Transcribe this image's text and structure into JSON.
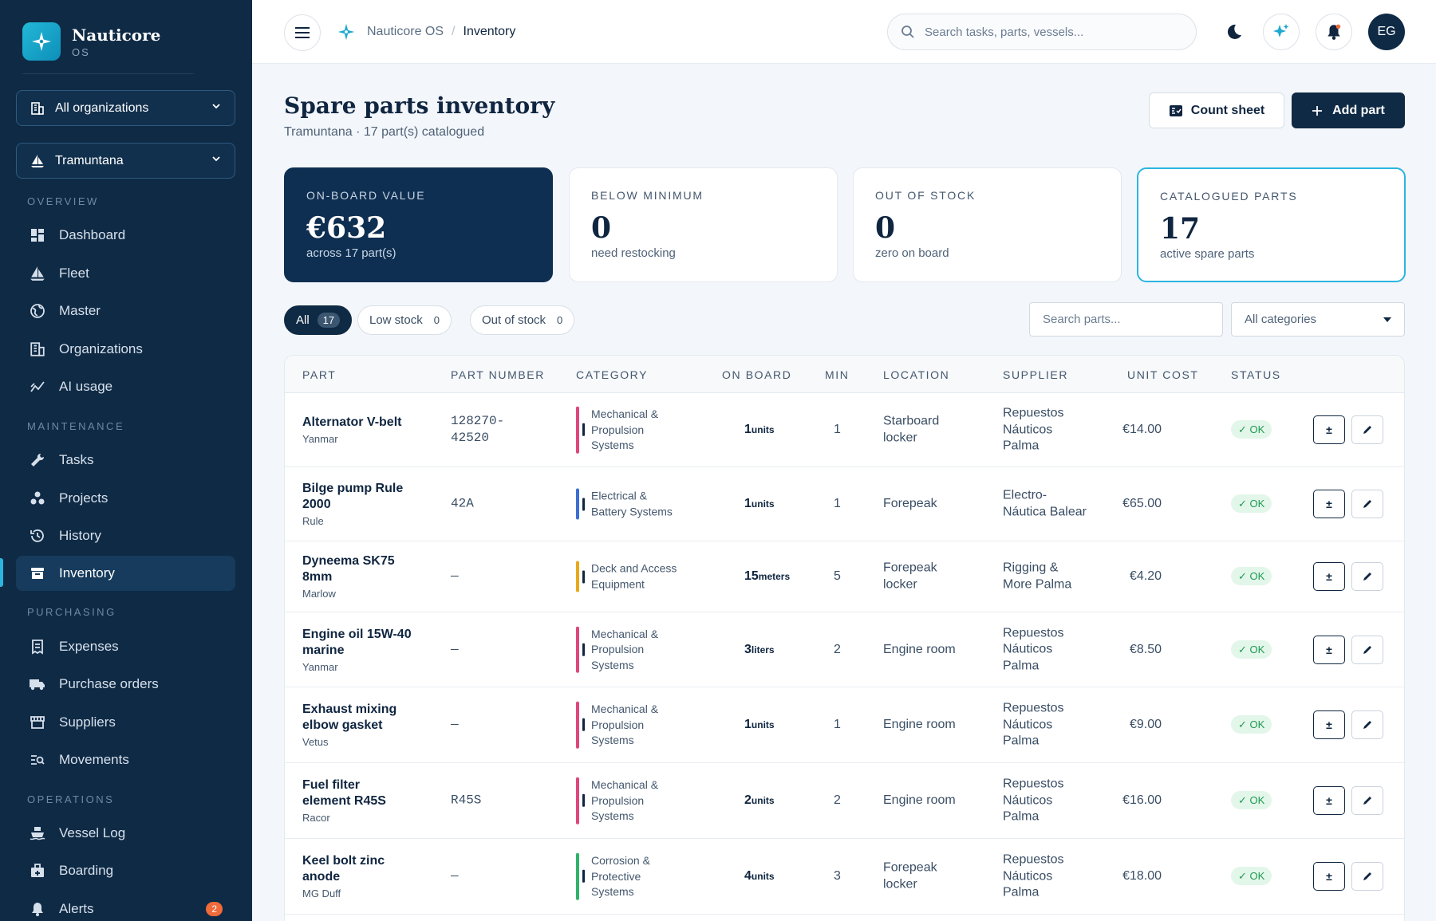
{
  "brand": {
    "name": "Nauticore",
    "sub": "OS"
  },
  "selectors": {
    "organization": "All organizations",
    "vessel": "Tramuntana"
  },
  "sidebar": {
    "sections": [
      "OVERVIEW",
      "MAINTENANCE",
      "PURCHASING",
      "OPERATIONS"
    ],
    "items": [
      {
        "label": "Dashboard",
        "icon": "dashboard-icon"
      },
      {
        "label": "Fleet",
        "icon": "sailboat-icon"
      },
      {
        "label": "Master",
        "icon": "globe-icon"
      },
      {
        "label": "Organizations",
        "icon": "building-icon"
      },
      {
        "label": "AI usage",
        "icon": "chart-icon"
      },
      {
        "label": "Tasks",
        "icon": "wrench-icon"
      },
      {
        "label": "Projects",
        "icon": "projects-icon"
      },
      {
        "label": "History",
        "icon": "history-icon"
      },
      {
        "label": "Inventory",
        "icon": "archive-icon"
      },
      {
        "label": "Expenses",
        "icon": "receipt-icon"
      },
      {
        "label": "Purchase orders",
        "icon": "truck-icon"
      },
      {
        "label": "Suppliers",
        "icon": "store-icon"
      },
      {
        "label": "Movements",
        "icon": "movements-icon"
      },
      {
        "label": "Vessel Log",
        "icon": "ship-icon"
      },
      {
        "label": "Boarding",
        "icon": "boarding-icon"
      },
      {
        "label": "Alerts",
        "icon": "bell-icon",
        "badge": "2"
      }
    ],
    "active": "Inventory"
  },
  "topbar": {
    "breadcrumb": [
      "Nauticore OS",
      "Inventory"
    ],
    "search_placeholder": "Search tasks, parts, vessels...",
    "avatar": "EG"
  },
  "page": {
    "title": "Spare parts inventory",
    "subtitle": "Tramuntana · 17 part(s) catalogued",
    "count_sheet": "Count sheet",
    "add_part": "Add part"
  },
  "kpis": [
    {
      "label": "ON-BOARD VALUE",
      "value": "€632",
      "desc": "across 17 part(s)"
    },
    {
      "label": "BELOW MINIMUM",
      "value": "0",
      "desc": "need restocking"
    },
    {
      "label": "OUT OF STOCK",
      "value": "0",
      "desc": "zero on board"
    },
    {
      "label": "CATALOGUED PARTS",
      "value": "17",
      "desc": "active spare parts"
    }
  ],
  "filters": {
    "tabs": [
      {
        "label": "All",
        "count": "17"
      },
      {
        "label": "Low stock",
        "count": "0"
      },
      {
        "label": "Out of stock",
        "count": "0"
      }
    ],
    "search_placeholder": "Search parts...",
    "category": "All categories"
  },
  "table": {
    "headers": [
      "PART",
      "PART NUMBER",
      "CATEGORY",
      "ON BOARD",
      "MIN",
      "LOCATION",
      "SUPPLIER",
      "UNIT COST",
      "STATUS"
    ],
    "adjust_label": "±",
    "rows": [
      {
        "name": "Alternator V-belt",
        "brand": "Yanmar",
        "number": "128270-\n42520",
        "category": "Mechanical &\nPropulsion\nSystems",
        "cat_color": "#e0457b",
        "qty": "1",
        "unit": "units",
        "min": "1",
        "location": "Starboard\nlocker",
        "supplier": "Repuestos\nNáuticos\nPalma",
        "cost": "€14.00",
        "status": "✓ OK"
      },
      {
        "name": "Bilge pump Rule\n2000",
        "brand": "Rule",
        "number": "42A",
        "category": "Electrical &\nBattery Systems",
        "cat_color": "#3b6fd4",
        "qty": "1",
        "unit": "units",
        "min": "1",
        "location": "Forepeak",
        "supplier": "Electro-\nNáutica Balear",
        "cost": "€65.00",
        "status": "✓ OK"
      },
      {
        "name": "Dyneema SK75\n8mm",
        "brand": "Marlow",
        "number": "—",
        "category": "Deck and Access\nEquipment",
        "cat_color": "#e8a91a",
        "qty": "15",
        "unit": "meters",
        "min": "5",
        "location": "Forepeak\nlocker",
        "supplier": "Rigging &\nMore Palma",
        "cost": "€4.20",
        "status": "✓ OK"
      },
      {
        "name": "Engine oil 15W-40\nmarine",
        "brand": "Yanmar",
        "number": "—",
        "category": "Mechanical &\nPropulsion\nSystems",
        "cat_color": "#e0457b",
        "qty": "3",
        "unit": "liters",
        "min": "2",
        "location": "Engine room",
        "supplier": "Repuestos\nNáuticos\nPalma",
        "cost": "€8.50",
        "status": "✓ OK"
      },
      {
        "name": "Exhaust mixing\nelbow gasket",
        "brand": "Vetus",
        "number": "—",
        "category": "Mechanical &\nPropulsion\nSystems",
        "cat_color": "#e0457b",
        "qty": "1",
        "unit": "units",
        "min": "1",
        "location": "Engine room",
        "supplier": "Repuestos\nNáuticos\nPalma",
        "cost": "€9.00",
        "status": "✓ OK"
      },
      {
        "name": "Fuel filter\nelement R45S",
        "brand": "Racor",
        "number": "R45S",
        "category": "Mechanical &\nPropulsion\nSystems",
        "cat_color": "#e0457b",
        "qty": "2",
        "unit": "units",
        "min": "2",
        "location": "Engine room",
        "supplier": "Repuestos\nNáuticos\nPalma",
        "cost": "€16.00",
        "status": "✓ OK"
      },
      {
        "name": "Keel bolt zinc\nanode",
        "brand": "MG Duff",
        "number": "—",
        "category": "Corrosion &\nProtective\nSystems",
        "cat_color": "#2fb36a",
        "qty": "4",
        "unit": "units",
        "min": "3",
        "location": "Forepeak\nlocker",
        "supplier": "Repuestos\nNáuticos\nPalma",
        "cost": "€18.00",
        "status": "✓ OK"
      }
    ]
  },
  "colors": {
    "sidebar": "#0f2a45",
    "accent": "#2bb5e0",
    "ok": "#1f9a52",
    "alert": "#f06a3a"
  }
}
